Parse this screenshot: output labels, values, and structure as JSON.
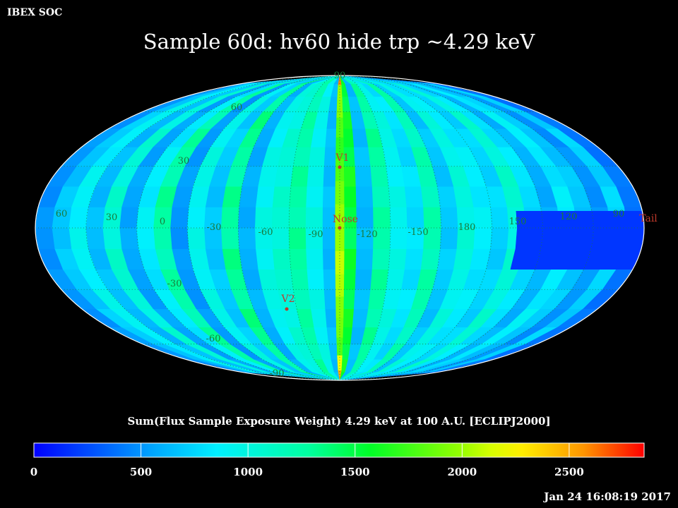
{
  "header": {
    "org": "IBEX SOC"
  },
  "timestamp": "Jan 24 16:08:19 2017",
  "colors": {
    "background": "#000000",
    "grid": "#1a7a3a",
    "marker": "#c0392b",
    "text": "#ffffff"
  },
  "chart_data": {
    "type": "heatmap",
    "projection": "mollweide",
    "title": "Sample 60d: hv60 hide trp ~4.29 keV",
    "colorbar_label": "Sum(Flux Sample Exposure Weight)  4.29 keV at 100 A.U. [ECLIPJ2000]",
    "colorbar": {
      "min": 0,
      "max": 2850,
      "ticks": [
        0,
        500,
        1000,
        1500,
        2000,
        2500
      ],
      "tick_labels": [
        "0",
        "500",
        "1000",
        "1500",
        "2000",
        "2500"
      ]
    },
    "longitude_labels": [
      "60",
      "30",
      "0",
      "-30",
      "-60",
      "-90",
      "-120",
      "-150",
      "180",
      "150",
      "120",
      "90"
    ],
    "latitude_labels": [
      "90",
      "60",
      "30",
      "-30",
      "-60",
      "-90"
    ],
    "markers": [
      {
        "label": "V1",
        "lon": -105,
        "lat": 35
      },
      {
        "label": "Nose",
        "lon": -105,
        "lat": -5
      },
      {
        "label": "V2",
        "lon": -75,
        "lat": -33
      },
      {
        "label": "Tail",
        "lon": 75,
        "lat": 5
      }
    ],
    "strip_flux": [
      500,
      700,
      900,
      650,
      1050,
      560,
      850,
      1250,
      520,
      950,
      700,
      1300,
      600,
      950,
      1050,
      1250,
      950,
      650,
      1550,
      650,
      1250,
      950,
      800,
      1200,
      700,
      1000,
      850,
      750,
      1050,
      800,
      600,
      850,
      700,
      500,
      750,
      400
    ],
    "central_strip": {
      "lon": -105,
      "flux": [
        2600,
        2000,
        1950,
        1800,
        1700,
        1800,
        1900,
        2000,
        2000,
        2100,
        2050,
        1950,
        1900,
        1800,
        2200,
        2500
      ]
    },
    "low_flux_region": {
      "lon_range": [
        150,
        90
      ],
      "lat_range": [
        -20,
        8
      ],
      "flux": 180
    }
  }
}
